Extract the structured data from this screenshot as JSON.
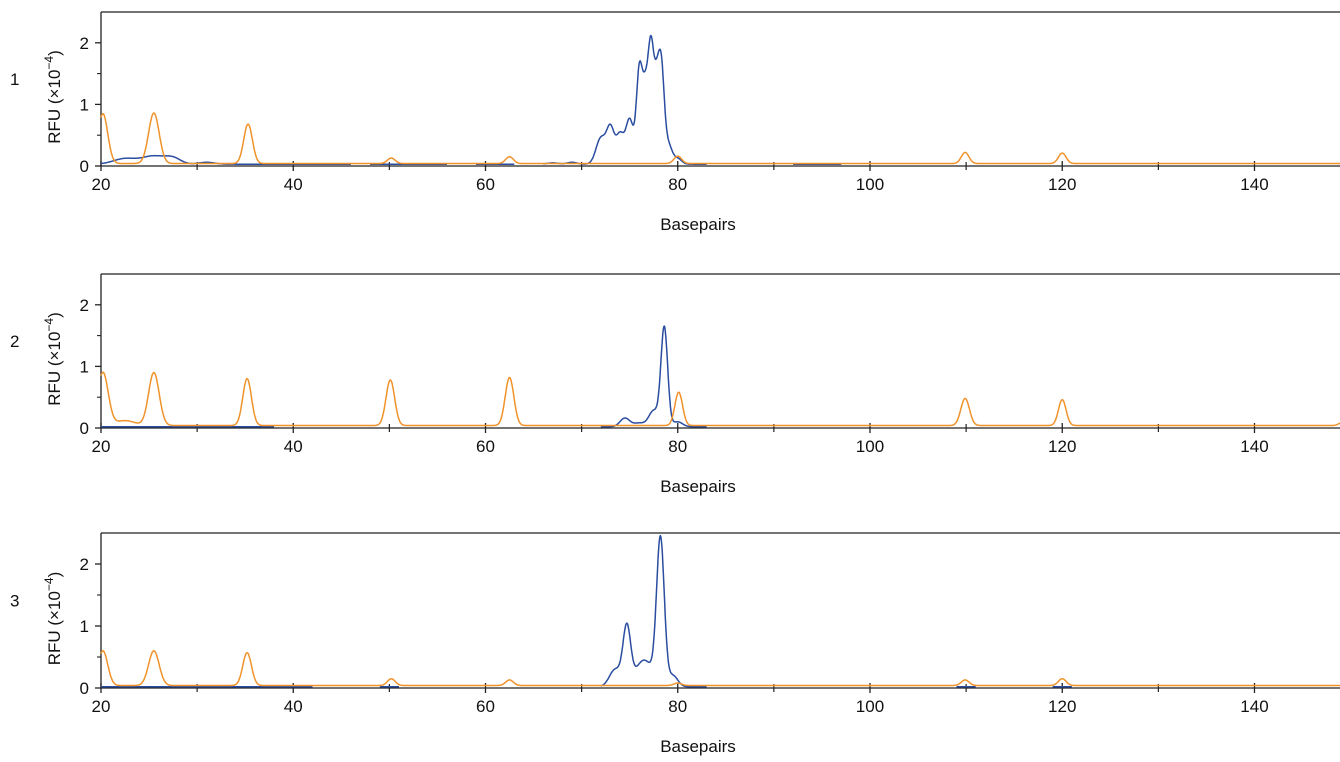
{
  "chart_data": [
    {
      "type": "line",
      "panel_label": "1",
      "ylabel": "RFU (×10",
      "ylabel_exponent": "−4",
      "ylabel_close": ")",
      "xlabel": "Basepairs",
      "xlim": [
        20,
        149
      ],
      "ylim": [
        0,
        2.5
      ],
      "x_ticks": [
        20,
        40,
        60,
        80,
        100,
        120,
        140
      ],
      "y_ticks": [
        0,
        1,
        2
      ],
      "grid": false,
      "series": [
        {
          "color": "#2a4da0",
          "peaks": [
            {
              "x": 22.5,
              "y": 0.12,
              "w": 1.2
            },
            {
              "x": 25.5,
              "y": 0.16,
              "w": 1.2
            },
            {
              "x": 27.5,
              "y": 0.12,
              "w": 0.8
            },
            {
              "x": 31,
              "y": 0.06,
              "w": 0.8
            },
            {
              "x": 67,
              "y": 0.05,
              "w": 0.6
            },
            {
              "x": 69,
              "y": 0.06,
              "w": 0.5
            },
            {
              "x": 72,
              "y": 0.45,
              "w": 0.5
            },
            {
              "x": 73,
              "y": 0.6,
              "w": 0.4
            },
            {
              "x": 74,
              "y": 0.5,
              "w": 0.4
            },
            {
              "x": 75,
              "y": 0.75,
              "w": 0.4
            },
            {
              "x": 76,
              "y": 1.5,
              "w": 0.3
            },
            {
              "x": 76.6,
              "y": 1.1,
              "w": 0.3
            },
            {
              "x": 77.2,
              "y": 1.82,
              "w": 0.3
            },
            {
              "x": 77.8,
              "y": 1.15,
              "w": 0.3
            },
            {
              "x": 78.3,
              "y": 1.45,
              "w": 0.3
            },
            {
              "x": 79,
              "y": 0.35,
              "w": 0.4
            },
            {
              "x": 80,
              "y": 0.12,
              "w": 0.4
            }
          ],
          "segments": [
            [
              20,
              46
            ],
            [
              48,
              56
            ],
            [
              59,
              63
            ],
            [
              66,
              83
            ],
            [
              92,
              97
            ]
          ],
          "baseline": 0.03
        },
        {
          "color": "#f0922a",
          "peaks": [
            {
              "x": 20.2,
              "y": 0.85,
              "w": 0.5
            },
            {
              "x": 25.5,
              "y": 0.86,
              "w": 0.55
            },
            {
              "x": 35.3,
              "y": 0.68,
              "w": 0.45
            },
            {
              "x": 50.2,
              "y": 0.13,
              "w": 0.4
            },
            {
              "x": 62.5,
              "y": 0.15,
              "w": 0.4
            },
            {
              "x": 80,
              "y": 0.16,
              "w": 0.4
            },
            {
              "x": 109.9,
              "y": 0.22,
              "w": 0.4
            },
            {
              "x": 120,
              "y": 0.21,
              "w": 0.4
            }
          ],
          "segments": [
            [
              20,
              149
            ]
          ],
          "baseline": 0.04
        }
      ]
    },
    {
      "type": "line",
      "panel_label": "2",
      "ylabel": "RFU (×10",
      "ylabel_exponent": "−4",
      "ylabel_close": ")",
      "xlabel": "Basepairs",
      "xlim": [
        20,
        149
      ],
      "ylim": [
        0,
        2.5
      ],
      "x_ticks": [
        20,
        40,
        60,
        80,
        100,
        120,
        140
      ],
      "y_ticks": [
        0,
        1,
        2
      ],
      "grid": false,
      "series": [
        {
          "color": "#2a4da0",
          "peaks": [
            {
              "x": 74.5,
              "y": 0.16,
              "w": 0.5
            },
            {
              "x": 76,
              "y": 0.08,
              "w": 0.6
            },
            {
              "x": 77.5,
              "y": 0.28,
              "w": 0.5
            },
            {
              "x": 78.6,
              "y": 1.63,
              "w": 0.35
            },
            {
              "x": 80,
              "y": 0.1,
              "w": 0.5
            }
          ],
          "segments": [
            [
              20,
              38
            ],
            [
              72,
              83
            ]
          ],
          "baseline": 0.02
        },
        {
          "color": "#f0922a",
          "peaks": [
            {
              "x": 20.2,
              "y": 0.9,
              "w": 0.55
            },
            {
              "x": 22.5,
              "y": 0.12,
              "w": 1.0
            },
            {
              "x": 25.5,
              "y": 0.9,
              "w": 0.55
            },
            {
              "x": 35.2,
              "y": 0.8,
              "w": 0.45
            },
            {
              "x": 50.1,
              "y": 0.78,
              "w": 0.45
            },
            {
              "x": 62.5,
              "y": 0.82,
              "w": 0.45
            },
            {
              "x": 80.1,
              "y": 0.58,
              "w": 0.4
            },
            {
              "x": 109.9,
              "y": 0.48,
              "w": 0.45
            },
            {
              "x": 120,
              "y": 0.46,
              "w": 0.4
            },
            {
              "x": 149,
              "y": 0.08,
              "w": 0.3
            }
          ],
          "segments": [
            [
              20,
              149
            ]
          ],
          "baseline": 0.04
        }
      ]
    },
    {
      "type": "line",
      "panel_label": "3",
      "ylabel": "RFU (×10",
      "ylabel_exponent": "−4",
      "ylabel_close": ")",
      "xlabel": "Basepairs",
      "xlim": [
        20,
        149
      ],
      "ylim": [
        0,
        2.5
      ],
      "x_ticks": [
        20,
        40,
        60,
        80,
        100,
        120,
        140
      ],
      "y_ticks": [
        0,
        1,
        2
      ],
      "grid": false,
      "series": [
        {
          "color": "#2a4da0",
          "peaks": [
            {
              "x": 73.5,
              "y": 0.3,
              "w": 0.6
            },
            {
              "x": 74.7,
              "y": 0.95,
              "w": 0.4
            },
            {
              "x": 76.5,
              "y": 0.45,
              "w": 0.9
            },
            {
              "x": 78.2,
              "y": 2.38,
              "w": 0.4
            },
            {
              "x": 79.5,
              "y": 0.2,
              "w": 0.5
            }
          ],
          "segments": [
            [
              20,
              42
            ],
            [
              49,
              51
            ],
            [
              72,
              83
            ],
            [
              109,
              111
            ],
            [
              119,
              121
            ]
          ],
          "baseline": 0.02
        },
        {
          "color": "#f0922a",
          "peaks": [
            {
              "x": 20.2,
              "y": 0.6,
              "w": 0.5
            },
            {
              "x": 25.5,
              "y": 0.6,
              "w": 0.55
            },
            {
              "x": 35.2,
              "y": 0.57,
              "w": 0.45
            },
            {
              "x": 50.2,
              "y": 0.15,
              "w": 0.4
            },
            {
              "x": 62.5,
              "y": 0.13,
              "w": 0.4
            },
            {
              "x": 80,
              "y": 0.08,
              "w": 0.4
            },
            {
              "x": 109.9,
              "y": 0.13,
              "w": 0.4
            },
            {
              "x": 120,
              "y": 0.15,
              "w": 0.4
            }
          ],
          "segments": [
            [
              20,
              149
            ]
          ],
          "baseline": 0.04
        }
      ]
    }
  ]
}
